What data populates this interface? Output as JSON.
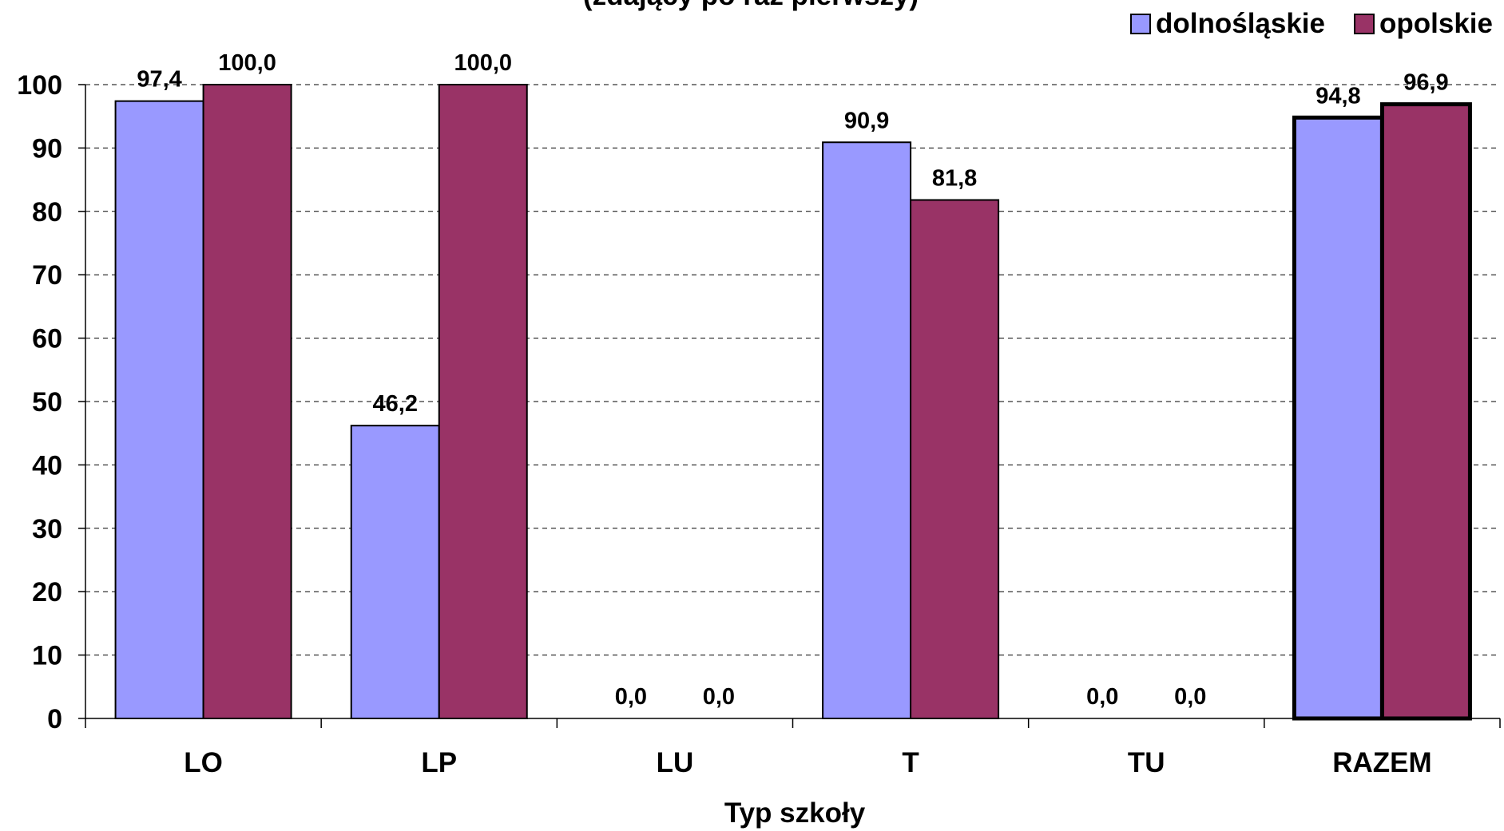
{
  "chart_data": {
    "type": "bar",
    "title": "(zdający po raz pierwszy)",
    "xlabel": "Typ szkoły",
    "ylabel": "",
    "categories": [
      "LO",
      "LP",
      "LU",
      "T",
      "TU",
      "RAZEM"
    ],
    "series": [
      {
        "name": "dolnośląskie",
        "color": "#9999FF",
        "values": [
          97.4,
          46.2,
          0.0,
          90.9,
          0.0,
          94.8
        ],
        "labels": [
          "97,4",
          "46,2",
          "0,0",
          "90,9",
          "0,0",
          "94,8"
        ]
      },
      {
        "name": "opolskie",
        "color": "#993366",
        "values": [
          100.0,
          100.0,
          0.0,
          81.8,
          0.0,
          96.9
        ],
        "labels": [
          "100,0",
          "100,0",
          "0,0",
          "81,8",
          "0,0",
          "96,9"
        ]
      }
    ],
    "ylim": [
      0,
      100
    ],
    "yticks": [
      0,
      10,
      20,
      30,
      40,
      50,
      60,
      70,
      80,
      90,
      100
    ],
    "grid": "dashed horizontal",
    "legend_position": "top-right",
    "emphasized_category": "RAZEM"
  }
}
